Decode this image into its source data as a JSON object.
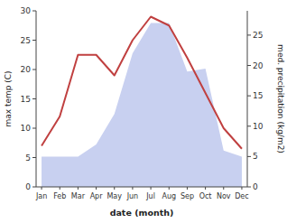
{
  "chart_data": {
    "type": "line",
    "xlabel": "date (month)",
    "ylabel": "max temp (C)",
    "y2label": "med. precipitation (kg/m2)",
    "categories": [
      "Jan",
      "Feb",
      "Mar",
      "Apr",
      "May",
      "Jun",
      "Jul",
      "Aug",
      "Sep",
      "Oct",
      "Nov",
      "Dec"
    ],
    "series": [
      {
        "type": "area",
        "axis": "y2",
        "color": "#c8d0f0",
        "values": [
          5.0,
          5.0,
          5.0,
          7.0,
          12.0,
          22.0,
          27.0,
          27.0,
          19.0,
          19.5,
          6.0,
          5.0
        ]
      },
      {
        "type": "line",
        "color": "#c04040",
        "values": [
          7.0,
          12.0,
          22.5,
          22.5,
          19.0,
          25.0,
          29.0,
          27.5,
          22.0,
          16.0,
          10.0,
          6.5
        ]
      }
    ],
    "ylim": [
      0,
      30
    ],
    "yticks": [
      0,
      5,
      10,
      15,
      20,
      25,
      30
    ],
    "y2lim": [
      0,
      29
    ],
    "y2ticks": [
      0,
      5,
      10,
      15,
      20,
      25
    ],
    "grid": false
  }
}
